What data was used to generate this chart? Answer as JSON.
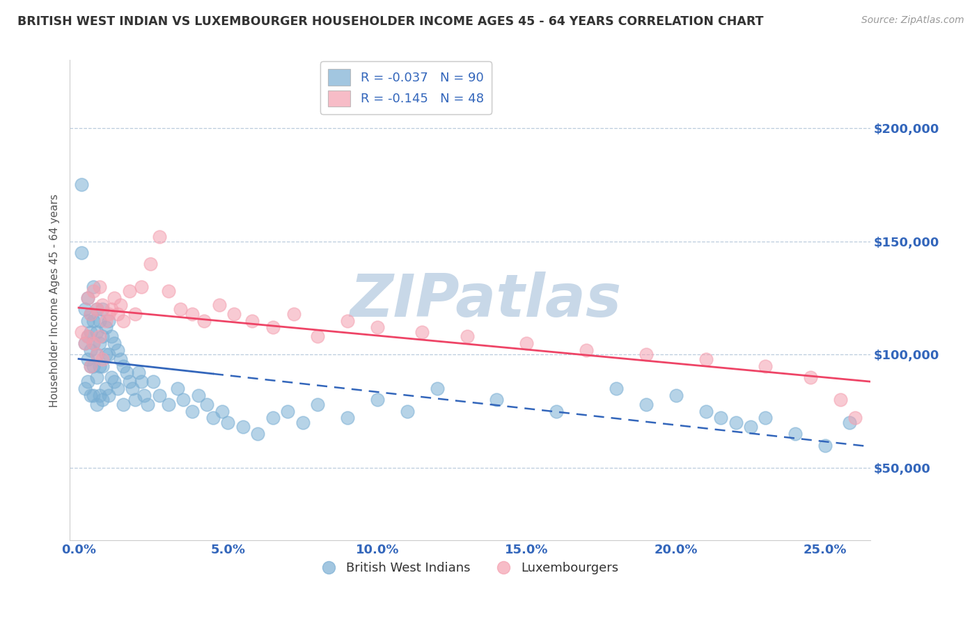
{
  "title": "BRITISH WEST INDIAN VS LUXEMBOURGER HOUSEHOLDER INCOME AGES 45 - 64 YEARS CORRELATION CHART",
  "source": "Source: ZipAtlas.com",
  "ylabel": "Householder Income Ages 45 - 64 years",
  "xlabel_ticks": [
    0.0,
    0.05,
    0.1,
    0.15,
    0.2,
    0.25
  ],
  "xlabel_labels": [
    "0.0%",
    "5.0%",
    "10.0%",
    "15.0%",
    "20.0%",
    "25.0%"
  ],
  "ytick_values": [
    50000,
    100000,
    150000,
    200000
  ],
  "ytick_labels": [
    "$50,000",
    "$100,000",
    "$150,000",
    "$200,000"
  ],
  "xlim": [
    -0.003,
    0.265
  ],
  "ylim": [
    18000,
    230000
  ],
  "legend_label1": "R = -0.037   N = 90",
  "legend_label2": "R = -0.145   N = 48",
  "scatter_blue_x": [
    0.001,
    0.001,
    0.002,
    0.002,
    0.002,
    0.003,
    0.003,
    0.003,
    0.003,
    0.003,
    0.004,
    0.004,
    0.004,
    0.004,
    0.004,
    0.005,
    0.005,
    0.005,
    0.005,
    0.005,
    0.006,
    0.006,
    0.006,
    0.006,
    0.006,
    0.007,
    0.007,
    0.007,
    0.007,
    0.008,
    0.008,
    0.008,
    0.008,
    0.009,
    0.009,
    0.009,
    0.01,
    0.01,
    0.01,
    0.011,
    0.011,
    0.012,
    0.012,
    0.013,
    0.013,
    0.014,
    0.015,
    0.015,
    0.016,
    0.017,
    0.018,
    0.019,
    0.02,
    0.021,
    0.022,
    0.023,
    0.025,
    0.027,
    0.03,
    0.033,
    0.035,
    0.038,
    0.04,
    0.043,
    0.045,
    0.048,
    0.05,
    0.055,
    0.06,
    0.065,
    0.07,
    0.075,
    0.08,
    0.09,
    0.1,
    0.11,
    0.12,
    0.14,
    0.16,
    0.18,
    0.19,
    0.2,
    0.21,
    0.215,
    0.22,
    0.225,
    0.23,
    0.24,
    0.25,
    0.258
  ],
  "scatter_blue_y": [
    175000,
    145000,
    120000,
    105000,
    85000,
    125000,
    115000,
    108000,
    98000,
    88000,
    118000,
    110000,
    102000,
    95000,
    82000,
    130000,
    115000,
    105000,
    95000,
    82000,
    120000,
    110000,
    100000,
    90000,
    78000,
    115000,
    105000,
    95000,
    82000,
    120000,
    108000,
    95000,
    80000,
    112000,
    100000,
    85000,
    115000,
    100000,
    82000,
    108000,
    90000,
    105000,
    88000,
    102000,
    85000,
    98000,
    95000,
    78000,
    92000,
    88000,
    85000,
    80000,
    92000,
    88000,
    82000,
    78000,
    88000,
    82000,
    78000,
    85000,
    80000,
    75000,
    82000,
    78000,
    72000,
    75000,
    70000,
    68000,
    65000,
    72000,
    75000,
    70000,
    78000,
    72000,
    80000,
    75000,
    85000,
    80000,
    75000,
    85000,
    78000,
    82000,
    75000,
    72000,
    70000,
    68000,
    72000,
    65000,
    60000,
    70000
  ],
  "scatter_pink_x": [
    0.001,
    0.002,
    0.003,
    0.003,
    0.004,
    0.004,
    0.005,
    0.005,
    0.006,
    0.006,
    0.007,
    0.007,
    0.008,
    0.008,
    0.009,
    0.01,
    0.011,
    0.012,
    0.013,
    0.014,
    0.015,
    0.017,
    0.019,
    0.021,
    0.024,
    0.027,
    0.03,
    0.034,
    0.038,
    0.042,
    0.047,
    0.052,
    0.058,
    0.065,
    0.072,
    0.08,
    0.09,
    0.1,
    0.115,
    0.13,
    0.15,
    0.17,
    0.19,
    0.21,
    0.23,
    0.245,
    0.255,
    0.26
  ],
  "scatter_pink_y": [
    110000,
    105000,
    125000,
    108000,
    118000,
    95000,
    128000,
    105000,
    120000,
    100000,
    130000,
    108000,
    122000,
    98000,
    115000,
    118000,
    120000,
    125000,
    118000,
    122000,
    115000,
    128000,
    118000,
    130000,
    140000,
    152000,
    128000,
    120000,
    118000,
    115000,
    122000,
    118000,
    115000,
    112000,
    118000,
    108000,
    115000,
    112000,
    110000,
    108000,
    105000,
    102000,
    100000,
    98000,
    95000,
    90000,
    80000,
    72000
  ],
  "blue_color": "#7BAFD4",
  "pink_color": "#F4A0B0",
  "blue_line_color": "#3366BB",
  "pink_line_color": "#EE4466",
  "watermark_text": "ZIPatlas",
  "watermark_color": "#C8D8E8",
  "grid_color": "#BBCCDD",
  "title_color": "#333333",
  "axis_label_color": "#555555",
  "tick_color": "#3366BB",
  "source_color": "#999999",
  "legend_R_color": "#EE4466",
  "legend_N_color": "#3366BB"
}
